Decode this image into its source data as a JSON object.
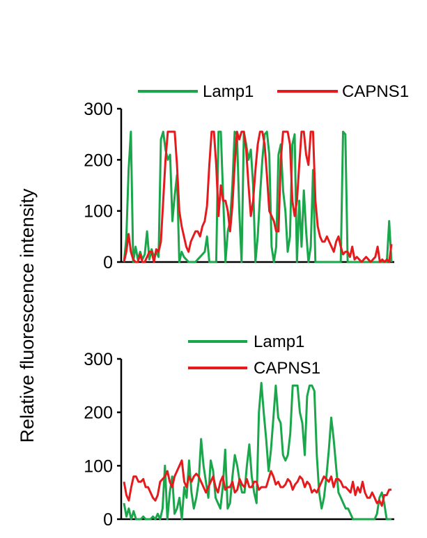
{
  "ylabel": "Relative fluorescence intensity",
  "colors": {
    "Lamp1": "#1aa64a",
    "CAPNS1": "#e41a1c"
  },
  "chart_data": [
    {
      "type": "line",
      "xlabel": "",
      "ylabel": "Relative fluorescence intensity",
      "ylim": [
        0,
        300
      ],
      "yticks": [
        0,
        100,
        200,
        300
      ],
      "legend_position": "top",
      "grid": false,
      "series": [
        {
          "name": "Lamp1",
          "color": "#1aa64a",
          "values": [
            0,
            45,
            180,
            255,
            0,
            30,
            5,
            20,
            5,
            15,
            60,
            5,
            25,
            10,
            20,
            10,
            240,
            255,
            220,
            200,
            210,
            80,
            130,
            170,
            0,
            20,
            10,
            5,
            0,
            0,
            0,
            0,
            5,
            10,
            15,
            20,
            50,
            0,
            0,
            0,
            0,
            255,
            255,
            130,
            0,
            60,
            80,
            150,
            255,
            250,
            100,
            0,
            255,
            230,
            200,
            220,
            150,
            0,
            50,
            130,
            200,
            250,
            255,
            210,
            30,
            0,
            30,
            210,
            230,
            140,
            100,
            20,
            50,
            230,
            250,
            0,
            120,
            30,
            140,
            60,
            0,
            30,
            180,
            0,
            0,
            0,
            0,
            0,
            0,
            0,
            0,
            0,
            0,
            0,
            0,
            255,
            250,
            0,
            0,
            0,
            0,
            0,
            0,
            0,
            0,
            0,
            0,
            0,
            0,
            0,
            0,
            0,
            0,
            0,
            0,
            80,
            0
          ]
        },
        {
          "name": "CAPNS1",
          "color": "#e41a1c",
          "values": [
            0,
            20,
            55,
            20,
            5,
            0,
            0,
            15,
            0,
            0,
            10,
            20,
            20,
            0,
            25,
            20,
            40,
            120,
            200,
            255,
            255,
            255,
            255,
            190,
            100,
            70,
            50,
            30,
            20,
            40,
            50,
            60,
            60,
            50,
            70,
            80,
            110,
            190,
            255,
            255,
            190,
            90,
            150,
            120,
            120,
            100,
            60,
            110,
            190,
            255,
            240,
            255,
            255,
            220,
            150,
            90,
            120,
            180,
            230,
            255,
            255,
            230,
            170,
            100,
            90,
            80,
            60,
            60,
            200,
            255,
            255,
            255,
            230,
            120,
            90,
            120,
            190,
            255,
            255,
            210,
            190,
            255,
            255,
            120,
            70,
            50,
            40,
            40,
            50,
            40,
            30,
            20,
            40,
            50,
            30,
            15,
            20,
            20,
            10,
            30,
            5,
            10,
            5,
            0,
            5,
            10,
            5,
            0,
            5,
            10,
            30,
            0,
            5,
            0,
            5,
            0,
            35
          ]
        }
      ]
    },
    {
      "type": "line",
      "xlabel": "",
      "ylabel": "Relative fluorescence intensity",
      "ylim": [
        0,
        300
      ],
      "yticks": [
        0,
        100,
        200,
        300
      ],
      "legend_position": "top",
      "grid": false,
      "series": [
        {
          "name": "Lamp1",
          "color": "#1aa64a",
          "values": [
            30,
            5,
            20,
            0,
            15,
            0,
            0,
            0,
            5,
            0,
            0,
            0,
            5,
            0,
            10,
            0,
            20,
            100,
            0,
            50,
            80,
            10,
            20,
            40,
            0,
            60,
            40,
            110,
            50,
            20,
            40,
            70,
            150,
            100,
            70,
            40,
            110,
            90,
            40,
            30,
            20,
            60,
            130,
            20,
            30,
            80,
            120,
            100,
            70,
            50,
            50,
            100,
            140,
            80,
            50,
            30,
            200,
            255,
            200,
            150,
            90,
            130,
            190,
            250,
            190,
            180,
            120,
            110,
            120,
            160,
            250,
            250,
            250,
            200,
            180,
            120,
            230,
            250,
            250,
            240,
            120,
            50,
            20,
            40,
            80,
            130,
            190,
            150,
            100,
            50,
            40,
            30,
            20,
            20,
            10,
            0,
            0,
            0,
            0,
            0,
            0,
            0,
            0,
            0,
            0,
            10,
            40,
            50,
            30,
            0,
            0,
            0
          ]
        },
        {
          "name": "CAPNS1",
          "color": "#e41a1c",
          "values": [
            70,
            45,
            35,
            60,
            80,
            80,
            70,
            70,
            75,
            60,
            60,
            50,
            40,
            35,
            45,
            70,
            75,
            80,
            90,
            70,
            60,
            80,
            90,
            100,
            110,
            70,
            60,
            80,
            70,
            80,
            85,
            80,
            70,
            60,
            50,
            60,
            70,
            80,
            60,
            50,
            70,
            80,
            55,
            60,
            60,
            70,
            50,
            55,
            75,
            65,
            60,
            75,
            60,
            60,
            70,
            70,
            55,
            60,
            60,
            60,
            75,
            90,
            80,
            65,
            70,
            60,
            60,
            65,
            75,
            70,
            55,
            65,
            70,
            80,
            75,
            60,
            70,
            65,
            50,
            55,
            50,
            60,
            70,
            80,
            75,
            70,
            80,
            60,
            75,
            75,
            70,
            60,
            60,
            55,
            50,
            70,
            45,
            60,
            50,
            70,
            50,
            40,
            40,
            50,
            40,
            30,
            35,
            25,
            45,
            45,
            55,
            55
          ]
        }
      ]
    }
  ]
}
